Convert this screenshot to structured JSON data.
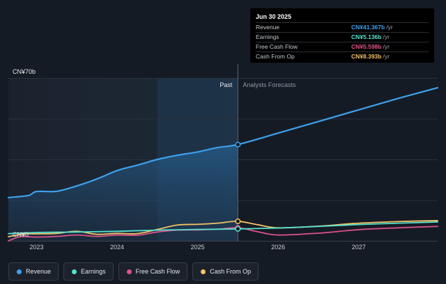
{
  "chart_data": {
    "type": "line",
    "title": "",
    "ylabel_top": "CN¥70b",
    "ylabel_bottom": "CN¥0",
    "ylim": [
      0,
      70
    ],
    "xlim": [
      2022.65,
      2027.98
    ],
    "divider_x": 2025.5,
    "past_label": "Past",
    "forecast_label": "Analysts Forecasts",
    "x_ticks": [
      {
        "value": 2023,
        "label": "2023"
      },
      {
        "value": 2024,
        "label": "2024"
      },
      {
        "value": 2025,
        "label": "2025"
      },
      {
        "value": 2026,
        "label": "2026"
      },
      {
        "value": 2027,
        "label": "2027"
      }
    ],
    "series": [
      {
        "name": "Revenue",
        "color": "#3ea0ec",
        "marker_at": 2025.5,
        "marker_value": 41.367,
        "points": [
          [
            2022.65,
            18.6
          ],
          [
            2022.9,
            19.5
          ],
          [
            2023.0,
            21.2
          ],
          [
            2023.25,
            21.3
          ],
          [
            2023.5,
            23.6
          ],
          [
            2023.75,
            26.6
          ],
          [
            2024.0,
            30.2
          ],
          [
            2024.25,
            32.5
          ],
          [
            2024.5,
            35.0
          ],
          [
            2024.75,
            36.8
          ],
          [
            2025.0,
            38.2
          ],
          [
            2025.25,
            40.1
          ],
          [
            2025.5,
            41.4
          ],
          [
            2026.0,
            46.3
          ],
          [
            2026.5,
            51.3
          ],
          [
            2027.0,
            56.3
          ],
          [
            2027.5,
            61.3
          ],
          [
            2027.98,
            65.8
          ]
        ]
      },
      {
        "name": "Earnings",
        "color": "#55e0d0",
        "marker_at": 2025.5,
        "marker_value": 5.136,
        "points": [
          [
            2022.65,
            3.1
          ],
          [
            2023.0,
            3.6
          ],
          [
            2023.5,
            3.8
          ],
          [
            2024.0,
            4.1
          ],
          [
            2024.5,
            4.6
          ],
          [
            2025.0,
            4.9
          ],
          [
            2025.5,
            5.1
          ],
          [
            2026.0,
            5.5
          ],
          [
            2026.5,
            6.2
          ],
          [
            2027.0,
            7.0
          ],
          [
            2027.5,
            7.6
          ],
          [
            2027.98,
            8.1
          ]
        ]
      },
      {
        "name": "Free Cash Flow",
        "color": "#e0528a",
        "marker_at": 2025.5,
        "marker_value": 5.598,
        "points": [
          [
            2022.65,
            0.0
          ],
          [
            2022.8,
            1.8
          ],
          [
            2023.0,
            1.6
          ],
          [
            2023.25,
            1.9
          ],
          [
            2023.5,
            2.5
          ],
          [
            2023.75,
            1.9
          ],
          [
            2024.0,
            2.5
          ],
          [
            2024.25,
            2.4
          ],
          [
            2024.5,
            3.8
          ],
          [
            2024.75,
            4.6
          ],
          [
            2025.0,
            4.7
          ],
          [
            2025.25,
            5.0
          ],
          [
            2025.5,
            5.6
          ],
          [
            2025.75,
            3.9
          ],
          [
            2026.0,
            2.5
          ],
          [
            2026.5,
            3.3
          ],
          [
            2027.0,
            4.8
          ],
          [
            2027.5,
            5.6
          ],
          [
            2027.98,
            6.2
          ]
        ]
      },
      {
        "name": "Cash From Op",
        "color": "#f2c265",
        "marker_at": 2025.5,
        "marker_value": 8.393,
        "points": [
          [
            2022.65,
            1.8
          ],
          [
            2022.85,
            3.0
          ],
          [
            2023.0,
            3.0
          ],
          [
            2023.25,
            3.2
          ],
          [
            2023.5,
            4.1
          ],
          [
            2023.75,
            2.8
          ],
          [
            2024.0,
            3.2
          ],
          [
            2024.25,
            3.1
          ],
          [
            2024.5,
            4.9
          ],
          [
            2024.75,
            6.8
          ],
          [
            2025.0,
            7.1
          ],
          [
            2025.25,
            7.6
          ],
          [
            2025.5,
            8.4
          ],
          [
            2025.75,
            6.9
          ],
          [
            2026.0,
            5.6
          ],
          [
            2026.5,
            6.3
          ],
          [
            2027.0,
            7.6
          ],
          [
            2027.5,
            8.3
          ],
          [
            2027.98,
            8.7
          ]
        ]
      }
    ]
  },
  "tooltip": {
    "date": "Jun 30 2025",
    "rows": [
      {
        "name": "Revenue",
        "value": "CN¥41.367b",
        "unit": "/yr",
        "color": "#3ea0ec"
      },
      {
        "name": "Earnings",
        "value": "CN¥5.136b",
        "unit": "/yr",
        "color": "#55e0d0"
      },
      {
        "name": "Free Cash Flow",
        "value": "CN¥5.598b",
        "unit": "/yr",
        "color": "#e0528a"
      },
      {
        "name": "Cash From Op",
        "value": "CN¥8.393b",
        "unit": "/yr",
        "color": "#f2c265"
      }
    ]
  },
  "legend": [
    {
      "label": "Revenue",
      "color": "#3ea0ec"
    },
    {
      "label": "Earnings",
      "color": "#55e0d0"
    },
    {
      "label": "Free Cash Flow",
      "color": "#e0528a"
    },
    {
      "label": "Cash From Op",
      "color": "#f2c265"
    }
  ]
}
